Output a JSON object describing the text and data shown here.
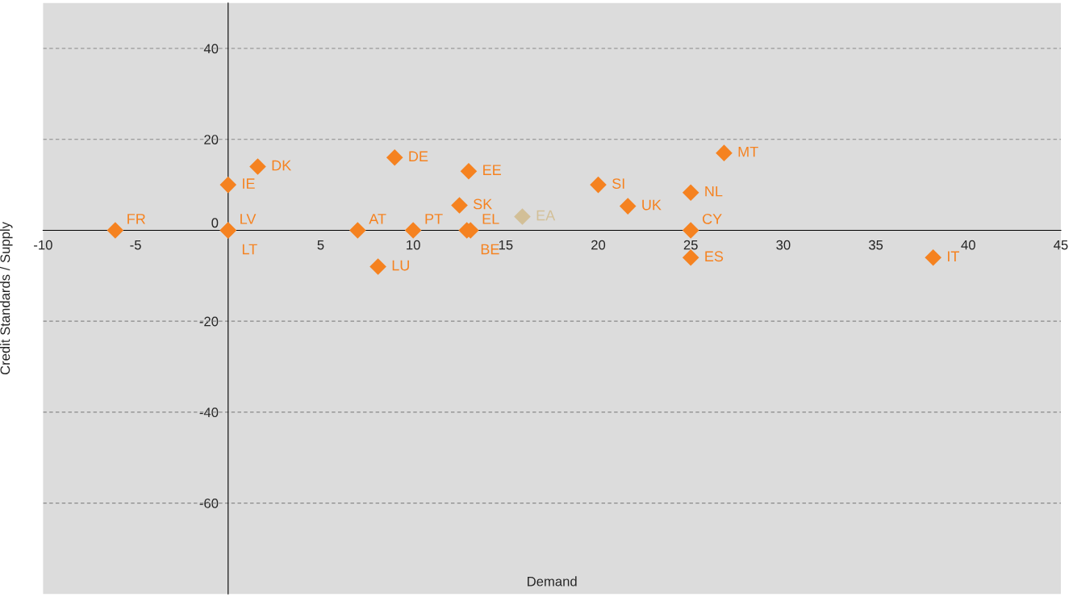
{
  "chart_data": {
    "type": "scatter",
    "xlabel": "Demand",
    "ylabel": "Credit Standards / Supply",
    "xlim": [
      -10,
      45
    ],
    "ylim": [
      -80,
      50
    ],
    "xticks": [
      -10,
      -5,
      5,
      10,
      15,
      20,
      25,
      30,
      35,
      40,
      45
    ],
    "yticks": [
      -60,
      -40,
      -20,
      0,
      20,
      40
    ],
    "grid": "y",
    "marker": "diamond",
    "series": [
      {
        "color": "#f58220",
        "x": [
          -6.1,
          0,
          0,
          0,
          1.6,
          9,
          13,
          12.5,
          7,
          10,
          13.1,
          12.9,
          8.1,
          20,
          21.6,
          25,
          25,
          25,
          26.8,
          38.1
        ],
        "values": [
          0,
          10,
          0,
          0,
          14,
          16,
          13,
          5.5,
          0,
          0,
          0,
          0,
          -8,
          10,
          5.3,
          8.3,
          0,
          -6,
          17,
          -6
        ]
      },
      {
        "color": "#d2bf97",
        "x": [
          15.9
        ],
        "values": [
          3
        ]
      }
    ],
    "annotations": [
      {
        "text": "FR",
        "x": -6.1,
        "y": 0
      },
      {
        "text": "IE",
        "x": 0,
        "y": 10
      },
      {
        "text": "LV",
        "x": 0,
        "y": 0
      },
      {
        "text": "LT",
        "x": 0,
        "y": 0
      },
      {
        "text": "DK",
        "x": 1.6,
        "y": 14
      },
      {
        "text": "DE",
        "x": 9,
        "y": 16
      },
      {
        "text": "EE",
        "x": 13,
        "y": 13
      },
      {
        "text": "SK",
        "x": 12.5,
        "y": 5.5
      },
      {
        "text": "AT",
        "x": 7,
        "y": 0
      },
      {
        "text": "PT",
        "x": 10,
        "y": 0
      },
      {
        "text": "EL",
        "x": 13.1,
        "y": 0
      },
      {
        "text": "BE",
        "x": 12.9,
        "y": 0
      },
      {
        "text": "LU",
        "x": 8.1,
        "y": -8
      },
      {
        "text": "SI",
        "x": 20,
        "y": 10
      },
      {
        "text": "UK",
        "x": 21.6,
        "y": 5.3
      },
      {
        "text": "NL",
        "x": 25,
        "y": 8.3
      },
      {
        "text": "CY",
        "x": 25,
        "y": 0
      },
      {
        "text": "ES",
        "x": 25,
        "y": -6
      },
      {
        "text": "MT",
        "x": 26.8,
        "y": 17
      },
      {
        "text": "IT",
        "x": 38.1,
        "y": -6
      },
      {
        "text": "EA",
        "x": 15.9,
        "y": 3
      }
    ]
  }
}
